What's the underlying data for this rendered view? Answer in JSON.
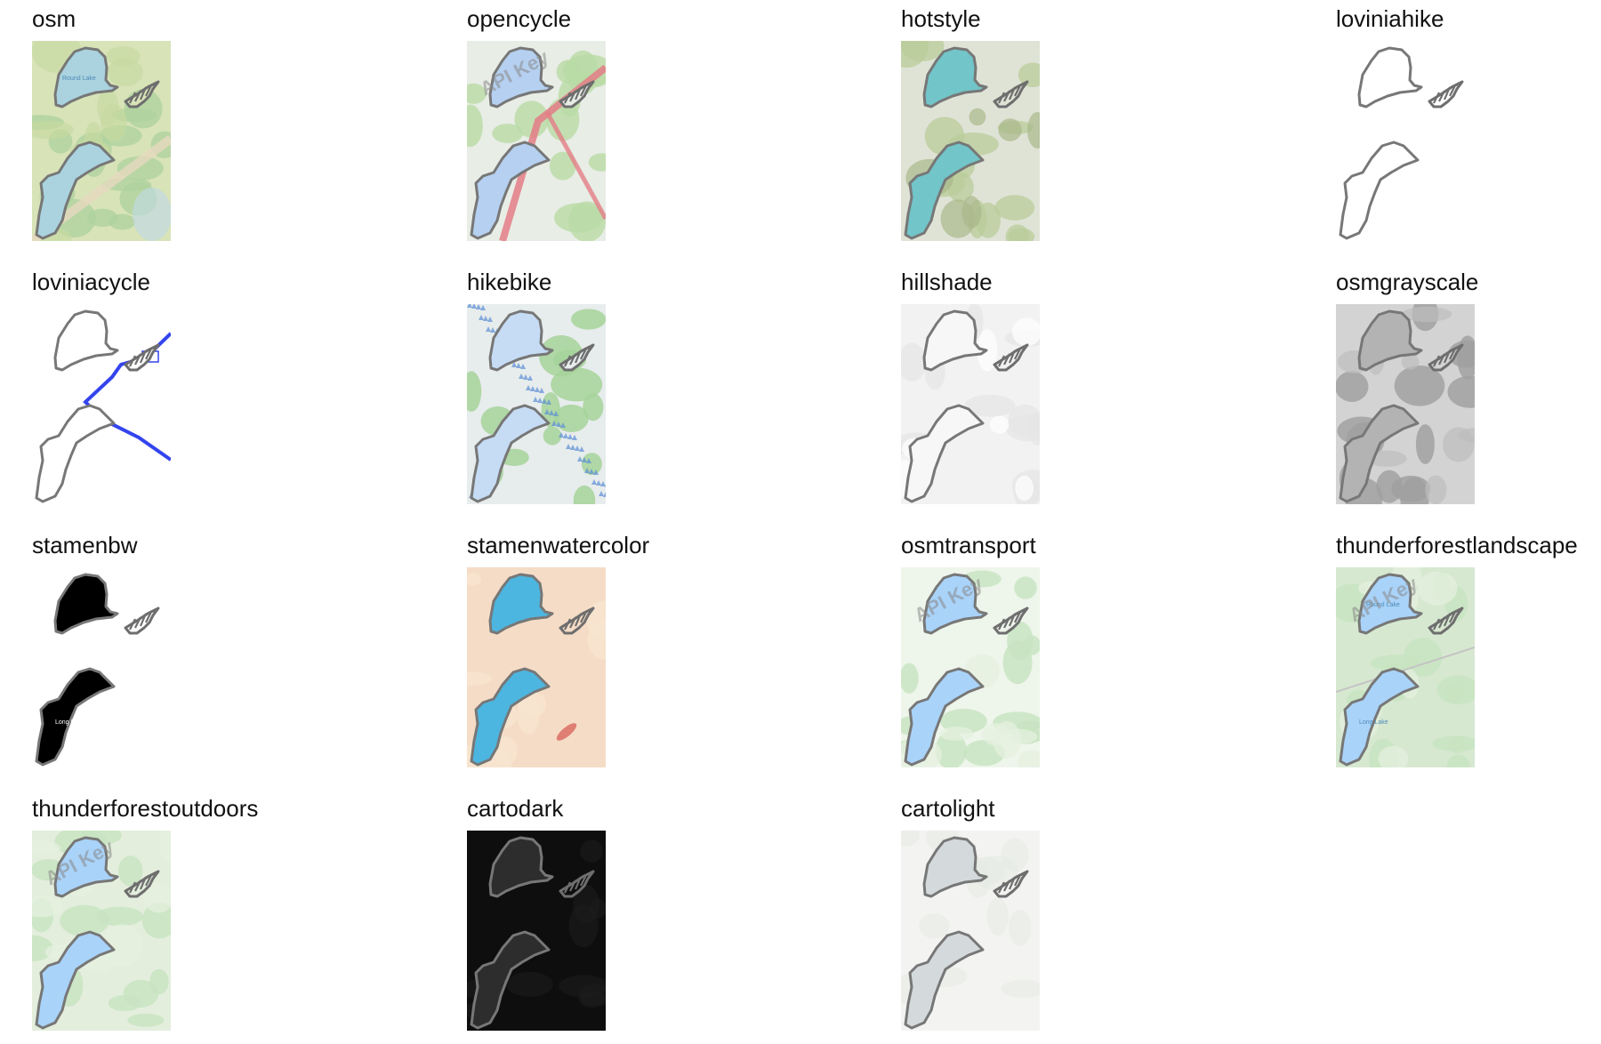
{
  "figure": {
    "panels": [
      {
        "title": "osm",
        "style": "osm",
        "lake_labels": [
          "Round Lake"
        ],
        "colors": {
          "bg": "#d8e3b8",
          "lake": "#aad3df"
        }
      },
      {
        "title": "opencycle",
        "style": "opencycle",
        "watermark": "API Key",
        "colors": {
          "bg": "#e8ede6",
          "lake": "#b5d0f0"
        }
      },
      {
        "title": "hotstyle",
        "style": "hotstyle",
        "colors": {
          "bg": "#dfe3d6",
          "lake": "#72c5c8"
        }
      },
      {
        "title": "loviniahike",
        "style": "loviniahike",
        "colors": {
          "bg": "#ffffff",
          "lake": "#ffffff"
        }
      },
      {
        "title": "loviniacycle",
        "style": "loviniacycle",
        "colors": {
          "bg": "#ffffff",
          "lake": "#ffffff",
          "route": "#3344ee"
        }
      },
      {
        "title": "hikebike",
        "style": "hikebike",
        "colors": {
          "bg": "#e7ecec",
          "lake": "#c6dcf5"
        }
      },
      {
        "title": "hillshade",
        "style": "hillshade",
        "colors": {
          "bg": "#f2f2f2",
          "lake": "#f7f7f7"
        }
      },
      {
        "title": "osmgrayscale",
        "style": "osmgrayscale",
        "colors": {
          "bg": "#d3d3d3",
          "lake": "#b3b3b3"
        }
      },
      {
        "title": "stamenbw",
        "style": "stamenbw",
        "lake_labels": [
          "Long Lake"
        ],
        "colors": {
          "bg": "#ffffff",
          "lake": "#000000"
        }
      },
      {
        "title": "stamenwatercolor",
        "style": "stamenwatercolor",
        "colors": {
          "bg": "#f5dcc6",
          "lake": "#4cb6e0"
        }
      },
      {
        "title": "osmtransport",
        "style": "osmtransport",
        "watermark": "API Key",
        "colors": {
          "bg": "#eef5ea",
          "lake": "#a9d3f9"
        }
      },
      {
        "title": "thunderforestlandscape",
        "style": "thunderforestlandscape",
        "watermark": "API Key",
        "lake_labels": [
          "Round Lake",
          "Long Lake"
        ],
        "colors": {
          "bg": "#d7e8d1",
          "lake": "#a9d3f9"
        }
      },
      {
        "title": "thunderforestoutdoors",
        "style": "thunderforestoutdoors",
        "watermark": "API Key",
        "colors": {
          "bg": "#e3eedd",
          "lake": "#a9d3f9"
        }
      },
      {
        "title": "cartodark",
        "style": "cartodark",
        "colors": {
          "bg": "#0e0e0e",
          "lake": "#2d2d2d"
        }
      },
      {
        "title": "cartolight",
        "style": "cartolight",
        "colors": {
          "bg": "#f3f4f2",
          "lake": "#d4dadc"
        }
      }
    ]
  }
}
